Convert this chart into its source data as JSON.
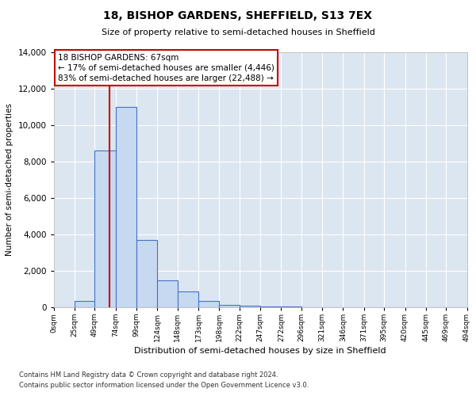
{
  "title": "18, BISHOP GARDENS, SHEFFIELD, S13 7EX",
  "subtitle": "Size of property relative to semi-detached houses in Sheffield",
  "xlabel": "Distribution of semi-detached houses by size in Sheffield",
  "ylabel": "Number of semi-detached properties",
  "property_size": 67,
  "pct_smaller": 17,
  "pct_larger": 83,
  "count_smaller": 4446,
  "count_larger": 22488,
  "bar_color": "#c6d9f1",
  "bar_edge_color": "#4472c4",
  "vline_color": "#cc0000",
  "bg_color": "#dce6f1",
  "ylim_max": 14000,
  "bin_edges": [
    0,
    25,
    49,
    74,
    99,
    124,
    148,
    173,
    198,
    222,
    247,
    272,
    296,
    321,
    346,
    371,
    395,
    420,
    445,
    469,
    494
  ],
  "bin_counts": [
    0,
    350,
    8600,
    11000,
    3700,
    1480,
    870,
    340,
    140,
    95,
    50,
    30,
    0,
    0,
    0,
    0,
    0,
    0,
    0,
    0
  ],
  "footnote1": "Contains HM Land Registry data © Crown copyright and database right 2024.",
  "footnote2": "Contains public sector information licensed under the Open Government Licence v3.0."
}
